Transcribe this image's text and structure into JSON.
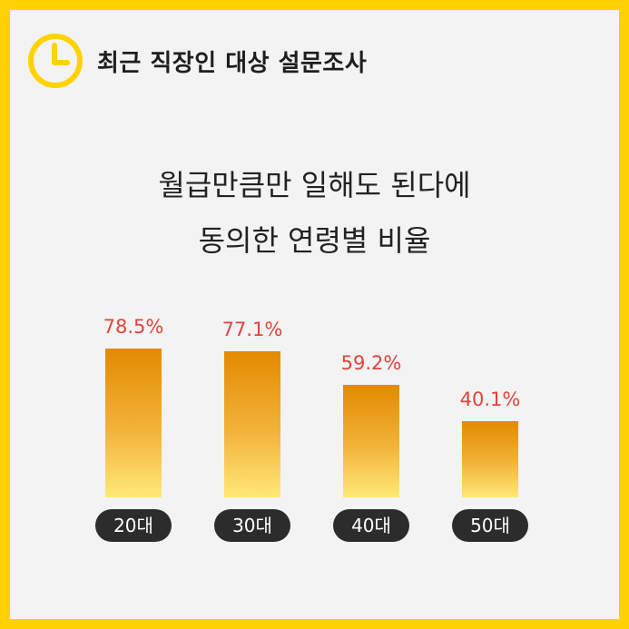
{
  "header": {
    "title": "최근 직장인 대상 설문조사",
    "icon": "clock-icon"
  },
  "subtitle": {
    "line1": "월급만큼만 일해도 된다에",
    "line2": "동의한 연령별 비율"
  },
  "colors": {
    "frame": "#FFD200",
    "background": "#F3F3F3",
    "bar_top": "#E38A00",
    "bar_bottom": "#FFE878",
    "value_label": "#E0443C",
    "category_pill": "#2C2C2C"
  },
  "chart_data": {
    "type": "bar",
    "categories": [
      "20대",
      "30대",
      "40대",
      "50대"
    ],
    "values": [
      78.5,
      77.1,
      59.2,
      40.1
    ],
    "value_labels": [
      "78.5%",
      "77.1%",
      "59.2%",
      "40.1%"
    ],
    "title": "",
    "xlabel": "",
    "ylabel": "",
    "ylim": [
      0,
      100
    ],
    "grid": false,
    "legend": "none"
  }
}
